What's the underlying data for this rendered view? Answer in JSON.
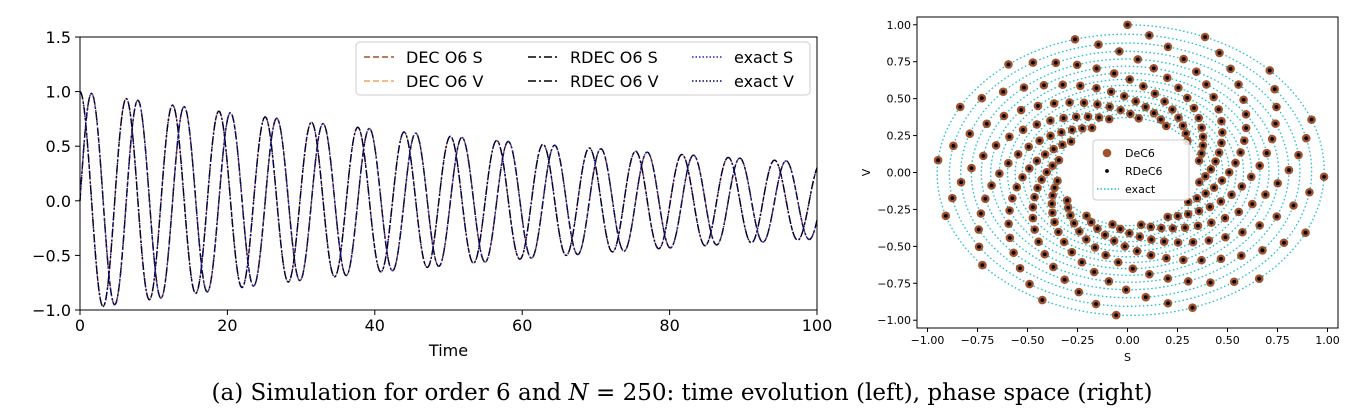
{
  "caption": {
    "prefix": "(a) Simulation for order 6 and ",
    "n_symbol": "N",
    "n_value": " = 250",
    "suffix": ": time evolution (left), phase space (right)"
  },
  "chart_data": [
    {
      "type": "line",
      "xlabel": "Time",
      "ylabel": "",
      "xlim": [
        0,
        100
      ],
      "ylim": [
        -1.0,
        1.5
      ],
      "xticks": [
        0,
        20,
        40,
        60,
        80,
        100
      ],
      "yticks": [
        -1.0,
        -0.5,
        0.0,
        0.5,
        1.0,
        1.5
      ],
      "xtick_labels": [
        "0",
        "20",
        "40",
        "60",
        "80",
        "100"
      ],
      "ytick_labels": [
        "−1.0",
        "−0.5",
        "0.0",
        "0.5",
        "1.0",
        "1.5"
      ],
      "grid": false,
      "legend_position": "top-right",
      "model": {
        "omega": 1.0,
        "amplitude_start": 1.0,
        "amplitude_end": 0.35
      },
      "series": [
        {
          "name": "DEC O6 S",
          "style": "dashed",
          "color": "#a0522d",
          "component": "S"
        },
        {
          "name": "DEC O6 V",
          "style": "dashed",
          "color": "#f4a460",
          "component": "V"
        },
        {
          "name": "RDEC O6 S",
          "style": "dashdot",
          "color": "#000000",
          "component": "S"
        },
        {
          "name": "RDEC O6 V",
          "style": "dashdot",
          "color": "#000000",
          "component": "V"
        },
        {
          "name": "exact S",
          "style": "dotted",
          "color": "#2020c0",
          "component": "S"
        },
        {
          "name": "exact V",
          "style": "dotted",
          "color": "#00008b",
          "component": "V"
        }
      ]
    },
    {
      "type": "scatter",
      "xlabel": "S",
      "ylabel": "V",
      "xlim": [
        -1.0,
        1.0
      ],
      "ylim": [
        -1.0,
        1.0
      ],
      "xticks": [
        -1.0,
        -0.75,
        -0.5,
        -0.25,
        0.0,
        0.25,
        0.5,
        0.75,
        1.0
      ],
      "yticks": [
        -1.0,
        -0.75,
        -0.5,
        -0.25,
        0.0,
        0.25,
        0.5,
        0.75,
        1.0
      ],
      "xtick_labels": [
        "−1.00",
        "−0.75",
        "−0.50",
        "−0.25",
        "0.00",
        "0.25",
        "0.50",
        "0.75",
        "1.00"
      ],
      "ytick_labels": [
        "−1.00",
        "−0.75",
        "−0.50",
        "−0.25",
        "0.00",
        "0.25",
        "0.50",
        "0.75",
        "1.00"
      ],
      "grid": false,
      "legend_position": "center",
      "model": {
        "radius_start": 1.0,
        "radius_end": 0.35,
        "sample_points": 250
      },
      "series": [
        {
          "name": "DeC6",
          "marker": "circle",
          "color": "#a0522d"
        },
        {
          "name": "RDeC6",
          "marker": "dot",
          "color": "#000000"
        },
        {
          "name": "exact",
          "style": "dotted",
          "color": "#17becf"
        }
      ]
    }
  ]
}
